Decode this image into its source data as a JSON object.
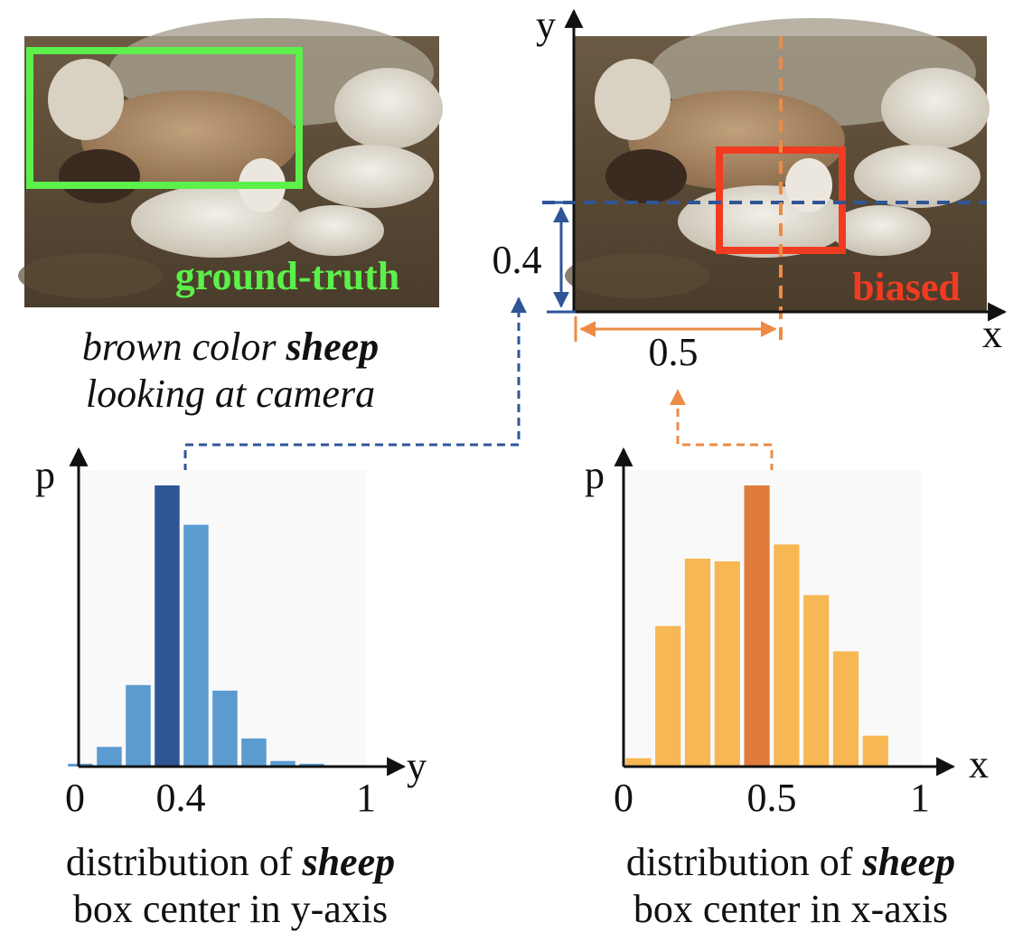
{
  "left_image": {
    "label": "ground-truth",
    "caption_line1_a": "brown color ",
    "caption_line1_b": "sheep",
    "caption_line2": "looking at camera",
    "box_color": "#5cf04a"
  },
  "right_image": {
    "label": "biased",
    "box_color": "#f13b21",
    "y_axis_label": "y",
    "x_axis_label": "x",
    "y_measure": "0.4",
    "x_measure": "0.5",
    "y_line_color": "#2f5597",
    "x_line_color": "#ed8b44"
  },
  "hist_y": {
    "p_label": "p",
    "axis_label": "y",
    "tick_0": "0",
    "tick_mid": "0.4",
    "tick_1": "1",
    "caption_line1_a": "distribution of ",
    "caption_line1_b": "sheep",
    "caption_line2": "box center in y-axis",
    "bar_color": "#5b9bd0",
    "highlight_color": "#2f5597"
  },
  "hist_x": {
    "p_label": "p",
    "axis_label": "x",
    "tick_0": "0",
    "tick_mid": "0.5",
    "tick_1": "1",
    "caption_line1_a": "distribution of ",
    "caption_line1_b": "sheep",
    "caption_line2": "box center in x-axis",
    "bar_color": "#f7b752",
    "highlight_color": "#e07b3a"
  },
  "chart_data": [
    {
      "type": "bar",
      "x": [
        0.05,
        0.15,
        0.25,
        0.35,
        0.45,
        0.55,
        0.65,
        0.75,
        0.85,
        0.95
      ],
      "values": [
        0.01,
        0.07,
        0.29,
        1.0,
        0.86,
        0.27,
        0.1,
        0.02,
        0.01,
        0.0
      ],
      "highlight_index": 3,
      "xlim": [
        0,
        1
      ],
      "ylim": [
        0,
        1
      ]
    },
    {
      "type": "bar",
      "x": [
        0.05,
        0.15,
        0.25,
        0.35,
        0.45,
        0.55,
        0.65,
        0.75,
        0.85,
        0.95
      ],
      "values": [
        0.03,
        0.5,
        0.74,
        0.73,
        1.0,
        0.79,
        0.61,
        0.41,
        0.11,
        0.0
      ],
      "highlight_index": 4,
      "xlim": [
        0,
        1
      ],
      "ylim": [
        0,
        1
      ]
    }
  ]
}
